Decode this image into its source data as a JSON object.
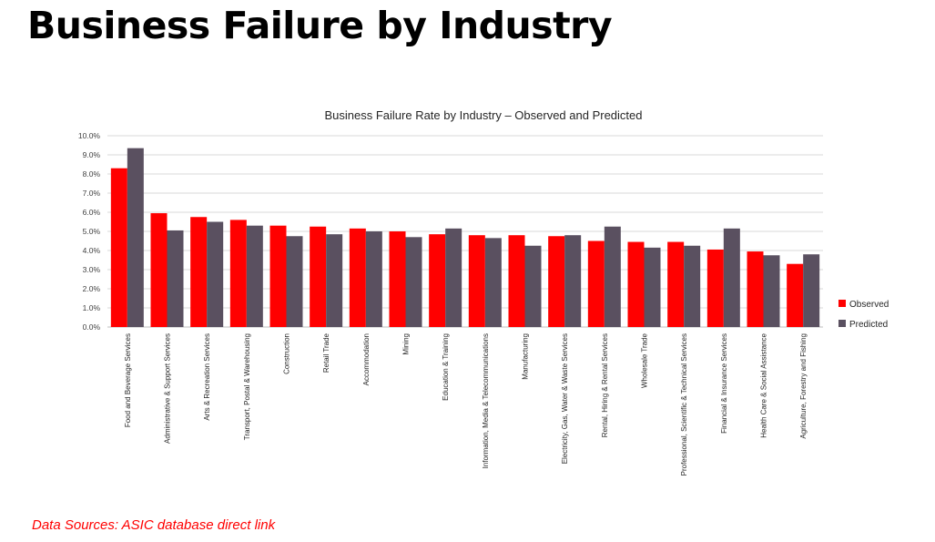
{
  "slide_title": "Business Failure by Industry",
  "data_sources": "Data Sources: ASIC database direct link",
  "colors": {
    "observed": "#ff0000",
    "predicted": "#5a5060",
    "grid": "#d9d9d9",
    "axis": "#bfbfbf"
  },
  "chart_data": {
    "type": "bar",
    "title": "Business Failure Rate by Industry – Observed and Predicted",
    "xlabel": "",
    "ylabel": "",
    "ylim": [
      0,
      10
    ],
    "y_ticks": [
      "0.0%",
      "1.0%",
      "2.0%",
      "3.0%",
      "4.0%",
      "5.0%",
      "6.0%",
      "7.0%",
      "8.0%",
      "9.0%",
      "10.0%"
    ],
    "grid": true,
    "legend_position": "right",
    "categories": [
      "Food and Beverage Services",
      "Administrative & Support Services",
      "Arts & Recreation Services",
      "Transport, Postal & Warehousing",
      "Construction",
      "Retail Trade",
      "Accommodation",
      "Mining",
      "Education & Training",
      "Information, Media & Telecommunications",
      "Manufacturing",
      "Electricity, Gas, Water & Waste Services",
      "Rental, Hiring & Rental Services",
      "Wholesale Trade",
      "Professional, Scientific & Technical Services",
      "Financial & Insurance Services",
      "Health Care & Social Assistance",
      "Agriculture, Forestry and Fishing"
    ],
    "series": [
      {
        "name": "Observed",
        "values": [
          8.3,
          5.95,
          5.75,
          5.6,
          5.3,
          5.25,
          5.15,
          5.0,
          4.85,
          4.8,
          4.8,
          4.75,
          4.5,
          4.45,
          4.45,
          4.05,
          3.95,
          3.3
        ]
      },
      {
        "name": "Predicted",
        "values": [
          9.35,
          5.05,
          5.5,
          5.3,
          4.75,
          4.85,
          5.0,
          4.7,
          5.15,
          4.65,
          4.25,
          4.8,
          5.25,
          4.15,
          4.25,
          5.15,
          3.75,
          3.8
        ]
      }
    ]
  }
}
